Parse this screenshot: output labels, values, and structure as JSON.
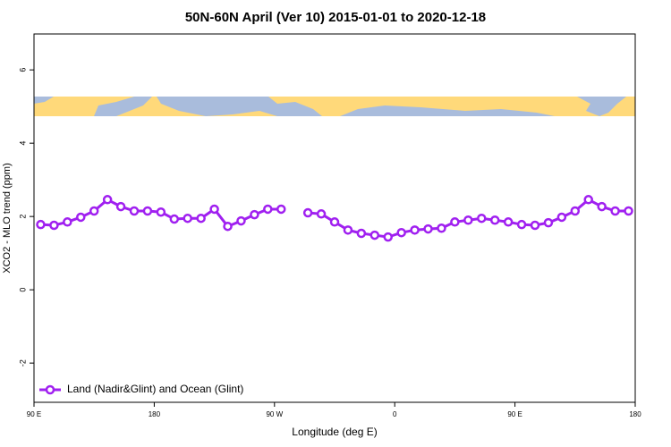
{
  "chart_data": {
    "type": "line",
    "title": "50N-60N April (Ver 10)   2015-01-01 to 2020-12-18",
    "x_label": "Longitude (deg E)",
    "y_label": "XCO2 - MLO trend (ppm)",
    "x": [
      95,
      105,
      115,
      125,
      135,
      145,
      155,
      165,
      175,
      185,
      195,
      205,
      215,
      225,
      235,
      245,
      255,
      265,
      275,
      285,
      295,
      305,
      315,
      325,
      335,
      345,
      355,
      365,
      375,
      385,
      395,
      405,
      415,
      425,
      435,
      445,
      455,
      465,
      475,
      485,
      495,
      505,
      515,
      525,
      535
    ],
    "series": [
      {
        "name": "Land (Nadir&Glint) and Ocean (Glint)",
        "color": "#a020f0",
        "values": [
          1.78,
          1.76,
          1.85,
          1.98,
          2.15,
          2.46,
          2.27,
          2.15,
          2.15,
          2.12,
          1.93,
          1.95,
          1.95,
          2.2,
          1.73,
          1.88,
          2.05,
          2.2,
          2.2,
          null,
          2.1,
          2.07,
          1.85,
          1.63,
          1.54,
          1.49,
          1.44,
          1.56,
          1.63,
          1.66,
          1.68,
          1.85,
          1.9,
          1.95,
          1.9,
          1.85,
          1.78,
          1.76,
          1.83,
          1.98,
          2.15,
          2.46,
          2.27,
          2.15,
          2.15
        ]
      }
    ],
    "xlim": [
      90,
      540
    ],
    "xticks": [
      {
        "value": 90,
        "label": "90 E"
      },
      180,
      {
        "value": 270,
        "label": "90 W"
      },
      {
        "value": 360,
        "label": "0"
      },
      {
        "value": 450,
        "label": "90 E"
      },
      {
        "value": 540,
        "label": "180"
      }
    ],
    "ylim": [
      -3.07,
      6.98
    ],
    "yticks": [
      -2,
      0,
      2,
      4,
      6
    ],
    "legend": "bottom-left"
  }
}
